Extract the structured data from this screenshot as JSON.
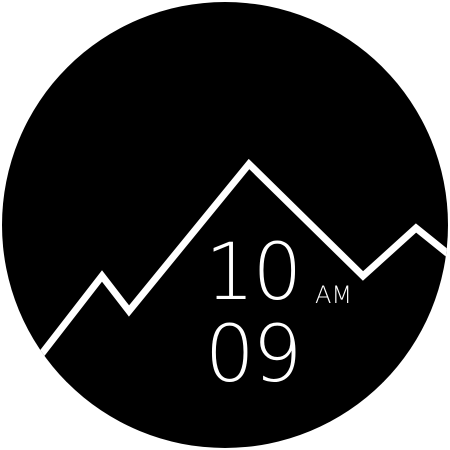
{
  "colors": {
    "face": "#000000",
    "foreground": "#ffffff",
    "background": "#ffffff"
  },
  "clock": {
    "hour": "10",
    "minute": "09",
    "ampm": "AM"
  },
  "decoration": {
    "icon": "mountain-range-line"
  }
}
